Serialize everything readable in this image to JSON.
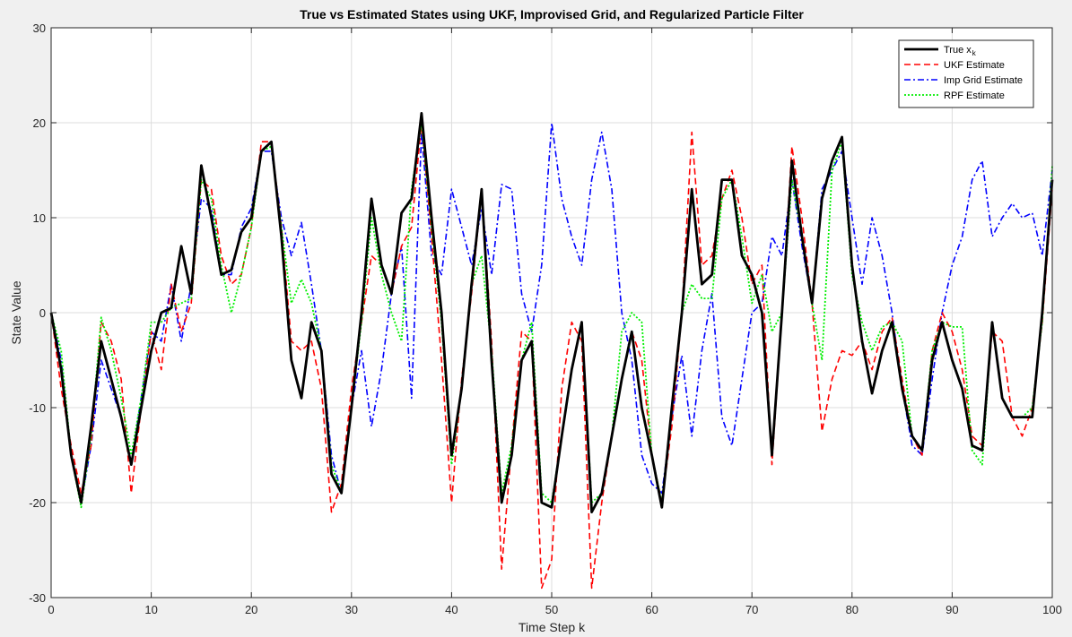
{
  "chart_data": {
    "type": "line",
    "title": "True vs Estimated States using UKF, Improvised Grid, and Regularized Particle Filter",
    "xlabel": "Time Step k",
    "ylabel": "State Value",
    "xlim": [
      0,
      100
    ],
    "ylim": [
      -30,
      30
    ],
    "xticks": [
      0,
      10,
      20,
      30,
      40,
      50,
      60,
      70,
      80,
      90,
      100
    ],
    "yticks": [
      -30,
      -20,
      -10,
      0,
      10,
      20,
      30
    ],
    "grid": true,
    "legend_position": "top-right",
    "x": [
      0,
      1,
      2,
      3,
      4,
      5,
      6,
      7,
      8,
      9,
      10,
      11,
      12,
      13,
      14,
      15,
      16,
      17,
      18,
      19,
      20,
      21,
      22,
      23,
      24,
      25,
      26,
      27,
      28,
      29,
      30,
      31,
      32,
      33,
      34,
      35,
      36,
      37,
      38,
      39,
      40,
      41,
      42,
      43,
      44,
      45,
      46,
      47,
      48,
      49,
      50,
      51,
      52,
      53,
      54,
      55,
      56,
      57,
      58,
      59,
      60,
      61,
      62,
      63,
      64,
      65,
      66,
      67,
      68,
      69,
      70,
      71,
      72,
      73,
      74,
      75,
      76,
      77,
      78,
      79,
      80,
      81,
      82,
      83,
      84,
      85,
      86,
      87,
      88,
      89,
      90,
      91,
      92,
      93,
      94,
      95,
      96,
      97,
      98,
      99,
      100
    ],
    "series": [
      {
        "name": "True x",
        "name_subscript": "k",
        "color": "#000000",
        "style": "solid",
        "values": [
          0,
          -6,
          -15,
          -20,
          -12,
          -3,
          -7,
          -11,
          -16,
          -10,
          -4,
          0,
          0.5,
          7,
          2,
          15.5,
          10,
          4,
          4.5,
          8.5,
          10,
          17,
          18,
          8,
          -5,
          -9,
          -1,
          -4,
          -17,
          -19,
          -10,
          0,
          12,
          5,
          2,
          10.5,
          12,
          21,
          10,
          0,
          -15,
          -8,
          3,
          13,
          -5,
          -20,
          -15,
          -5,
          -3,
          -20,
          -20.5,
          -13,
          -6,
          -1,
          -21,
          -19,
          -13,
          -7,
          -2,
          -10,
          -15,
          -20.5,
          -10,
          0,
          13,
          3,
          4,
          14,
          14,
          6,
          4,
          0,
          -15,
          0,
          16,
          8,
          1,
          12,
          16,
          18.5,
          5,
          -3,
          -8.5,
          -4,
          -1,
          -8,
          -13,
          -14.5,
          -5,
          -1,
          -5,
          -8,
          -14,
          -14.5,
          -1,
          -9,
          -11,
          -11,
          -11,
          0,
          14
        ]
      },
      {
        "name": "UKF Estimate",
        "color": "#ff0000",
        "style": "dashed",
        "values": [
          0,
          -8,
          -14,
          -19,
          -14,
          -1,
          -3,
          -7,
          -19,
          -10,
          -2,
          -6,
          3,
          -2,
          1,
          14,
          13,
          6,
          3,
          4,
          9,
          18,
          18,
          9,
          -3,
          -4,
          -3,
          -8,
          -21,
          -18,
          -8,
          -1,
          6,
          5,
          2,
          7,
          9,
          20,
          8,
          -5,
          -20,
          -7,
          2,
          13,
          -3,
          -27,
          -14,
          -2,
          -3,
          -29,
          -26,
          -8,
          -1,
          -3,
          -29,
          -20,
          -13,
          -7,
          -2,
          -5,
          -15,
          -20,
          -12,
          0,
          19,
          5,
          6,
          12,
          15,
          10,
          3,
          5,
          -16,
          0,
          17.5,
          10,
          1,
          -12.5,
          -7,
          -4,
          -4.5,
          -3,
          -6,
          -2,
          -0.5,
          -7,
          -13,
          -15,
          -4,
          0,
          -2,
          -6,
          -13,
          -14,
          -2,
          -3,
          -11,
          -13,
          -10,
          -1,
          13
        ]
      },
      {
        "name": "Imp Grid Estimate",
        "color": "#0000ff",
        "style": "dashdot",
        "values": [
          0,
          -5,
          -15,
          -20,
          -14,
          -5,
          -8,
          -11,
          -16,
          -9,
          -2,
          -3,
          3,
          -3,
          3,
          12,
          11,
          4,
          4,
          9,
          11,
          17,
          17,
          10,
          6,
          9.5,
          3,
          -4,
          -15,
          -19,
          -10,
          -4,
          -12,
          -6,
          2,
          7,
          -9,
          19,
          6,
          4,
          13,
          9,
          5,
          11,
          4,
          13.5,
          13,
          2,
          -2,
          5,
          20,
          12,
          8,
          5,
          14,
          19,
          13,
          0,
          -5,
          -15,
          -18,
          -19,
          -11,
          -4.5,
          -13,
          -4,
          2,
          -11,
          -14,
          -7,
          0,
          1,
          8,
          6,
          14,
          7,
          1,
          13,
          15,
          17,
          10,
          3,
          10,
          6,
          0,
          -8,
          -14,
          -15,
          -7,
          0,
          5,
          8,
          14,
          16,
          8,
          10,
          11.5,
          10,
          10.5,
          6,
          15
        ]
      },
      {
        "name": "RPF Estimate",
        "color": "#00ee00",
        "style": "dotted",
        "values": [
          0,
          -4,
          -15,
          -20.5,
          -13,
          -0.5,
          -4,
          -9,
          -15,
          -9,
          -1,
          -1,
          0.5,
          1,
          1.5,
          14,
          12,
          5,
          0,
          4,
          9,
          17,
          17.5,
          9,
          1,
          3.5,
          1,
          -4,
          -16,
          -19,
          -10,
          -1,
          10,
          4,
          0,
          -3,
          13,
          20,
          9,
          -1,
          -16,
          -8,
          3,
          6,
          -4,
          -19,
          -14,
          -5,
          -1,
          -19,
          -20,
          -13,
          -6,
          -1,
          -20,
          -19,
          -13,
          -2,
          0,
          -1,
          -15,
          -20,
          -10,
          0,
          3,
          1.5,
          1.5,
          12,
          14,
          8,
          1,
          4,
          -2,
          0,
          14,
          8,
          1,
          -5,
          15,
          18,
          4,
          -1,
          -4,
          -1.5,
          -1,
          -3,
          -13,
          -14.5,
          -4,
          -1,
          -1.5,
          -1.5,
          -14.5,
          -16,
          -1,
          -9,
          -11,
          -11,
          -10,
          -1,
          15.5
        ]
      }
    ]
  }
}
